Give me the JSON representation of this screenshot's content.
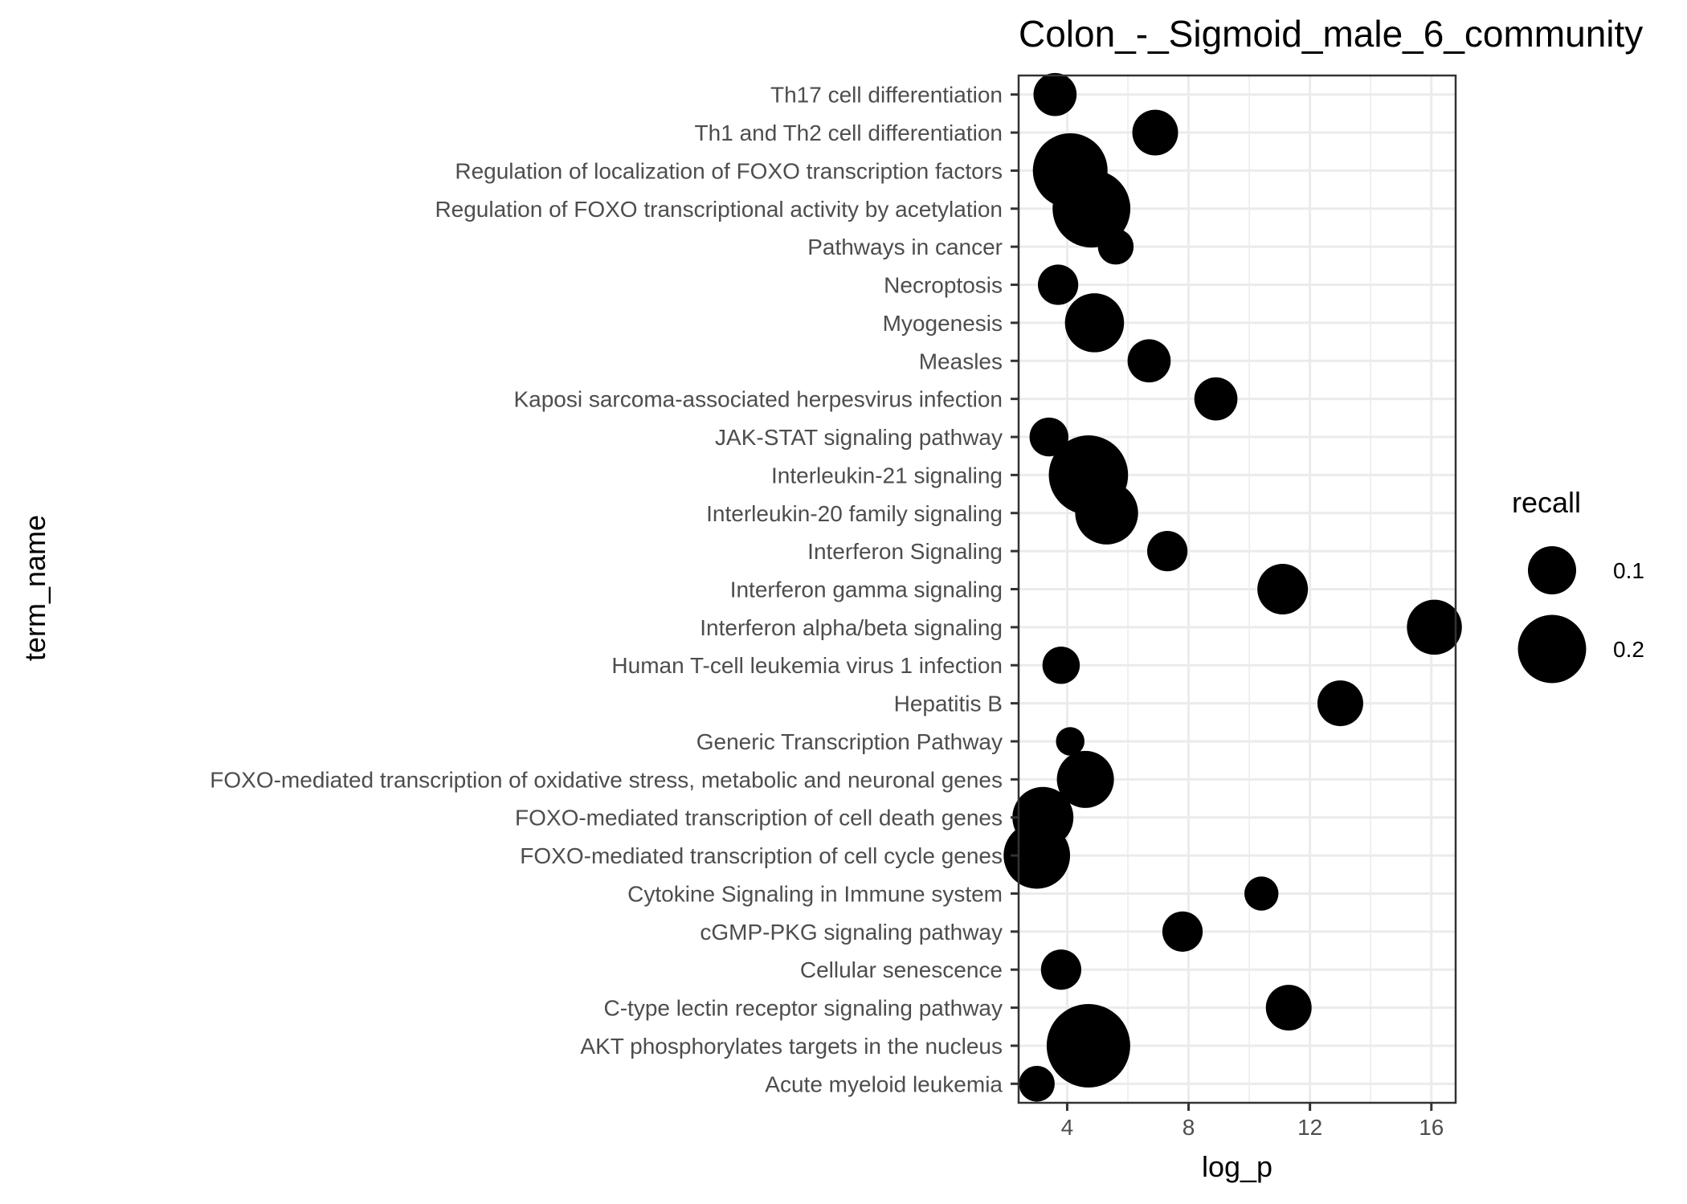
{
  "chart_data": {
    "type": "scatter",
    "title": "Colon_-_Sigmoid_male_6_community",
    "xlabel": "log_p",
    "ylabel": "term_name",
    "xlim": [
      2.4,
      16.8
    ],
    "x_ticks": [
      4,
      8,
      12,
      16
    ],
    "grid": true,
    "legend_position": "right",
    "legend": {
      "title": "recall",
      "entries": [
        {
          "label": "0.1",
          "value": 0.1
        },
        {
          "label": "0.2",
          "value": 0.2
        }
      ]
    },
    "points": [
      {
        "term": "Th17 cell differentiation",
        "log_p": 3.6,
        "recall": 0.08
      },
      {
        "term": "Th1 and Th2 cell differentiation",
        "log_p": 6.9,
        "recall": 0.09
      },
      {
        "term": "Regulation of localization of FOXO transcription factors",
        "log_p": 4.1,
        "recall": 0.24
      },
      {
        "term": "Regulation of FOXO transcriptional activity by acetylation",
        "log_p": 4.8,
        "recall": 0.26
      },
      {
        "term": "Pathways in cancer",
        "log_p": 5.6,
        "recall": 0.055
      },
      {
        "term": "Necroptosis",
        "log_p": 3.7,
        "recall": 0.07
      },
      {
        "term": "Myogenesis",
        "log_p": 4.9,
        "recall": 0.15
      },
      {
        "term": "Measles",
        "log_p": 6.7,
        "recall": 0.08
      },
      {
        "term": "Kaposi sarcoma-associated herpesvirus infection",
        "log_p": 8.9,
        "recall": 0.08
      },
      {
        "term": "JAK-STAT signaling pathway",
        "log_p": 3.4,
        "recall": 0.065
      },
      {
        "term": "Interleukin-21 signaling",
        "log_p": 4.7,
        "recall": 0.27
      },
      {
        "term": "Interleukin-20 family signaling",
        "log_p": 5.3,
        "recall": 0.17
      },
      {
        "term": "Interferon Signaling",
        "log_p": 7.3,
        "recall": 0.07
      },
      {
        "term": "Interferon gamma signaling",
        "log_p": 11.1,
        "recall": 0.11
      },
      {
        "term": "Interferon alpha/beta signaling",
        "log_p": 16.1,
        "recall": 0.13
      },
      {
        "term": "Human T-cell leukemia virus 1 infection",
        "log_p": 3.8,
        "recall": 0.06
      },
      {
        "term": "Hepatitis B",
        "log_p": 13.0,
        "recall": 0.09
      },
      {
        "term": "Generic Transcription Pathway",
        "log_p": 4.1,
        "recall": 0.035
      },
      {
        "term": "FOXO-mediated transcription of oxidative stress, metabolic and neuronal genes",
        "log_p": 4.6,
        "recall": 0.14
      },
      {
        "term": "FOXO-mediated transcription of cell death genes",
        "log_p": 3.2,
        "recall": 0.16
      },
      {
        "term": "FOXO-mediated transcription of cell cycle genes",
        "log_p": 3.0,
        "recall": 0.19
      },
      {
        "term": "Cytokine Signaling in Immune system",
        "log_p": 10.4,
        "recall": 0.05
      },
      {
        "term": "cGMP-PKG signaling pathway",
        "log_p": 7.8,
        "recall": 0.07
      },
      {
        "term": "Cellular senescence",
        "log_p": 3.8,
        "recall": 0.07
      },
      {
        "term": "C-type lectin receptor signaling pathway",
        "log_p": 11.3,
        "recall": 0.09
      },
      {
        "term": "AKT phosphorylates targets in the nucleus",
        "log_p": 4.7,
        "recall": 0.3
      },
      {
        "term": "Acute myeloid leukemia",
        "log_p": 3.0,
        "recall": 0.055
      }
    ],
    "point_color": "#000000"
  }
}
